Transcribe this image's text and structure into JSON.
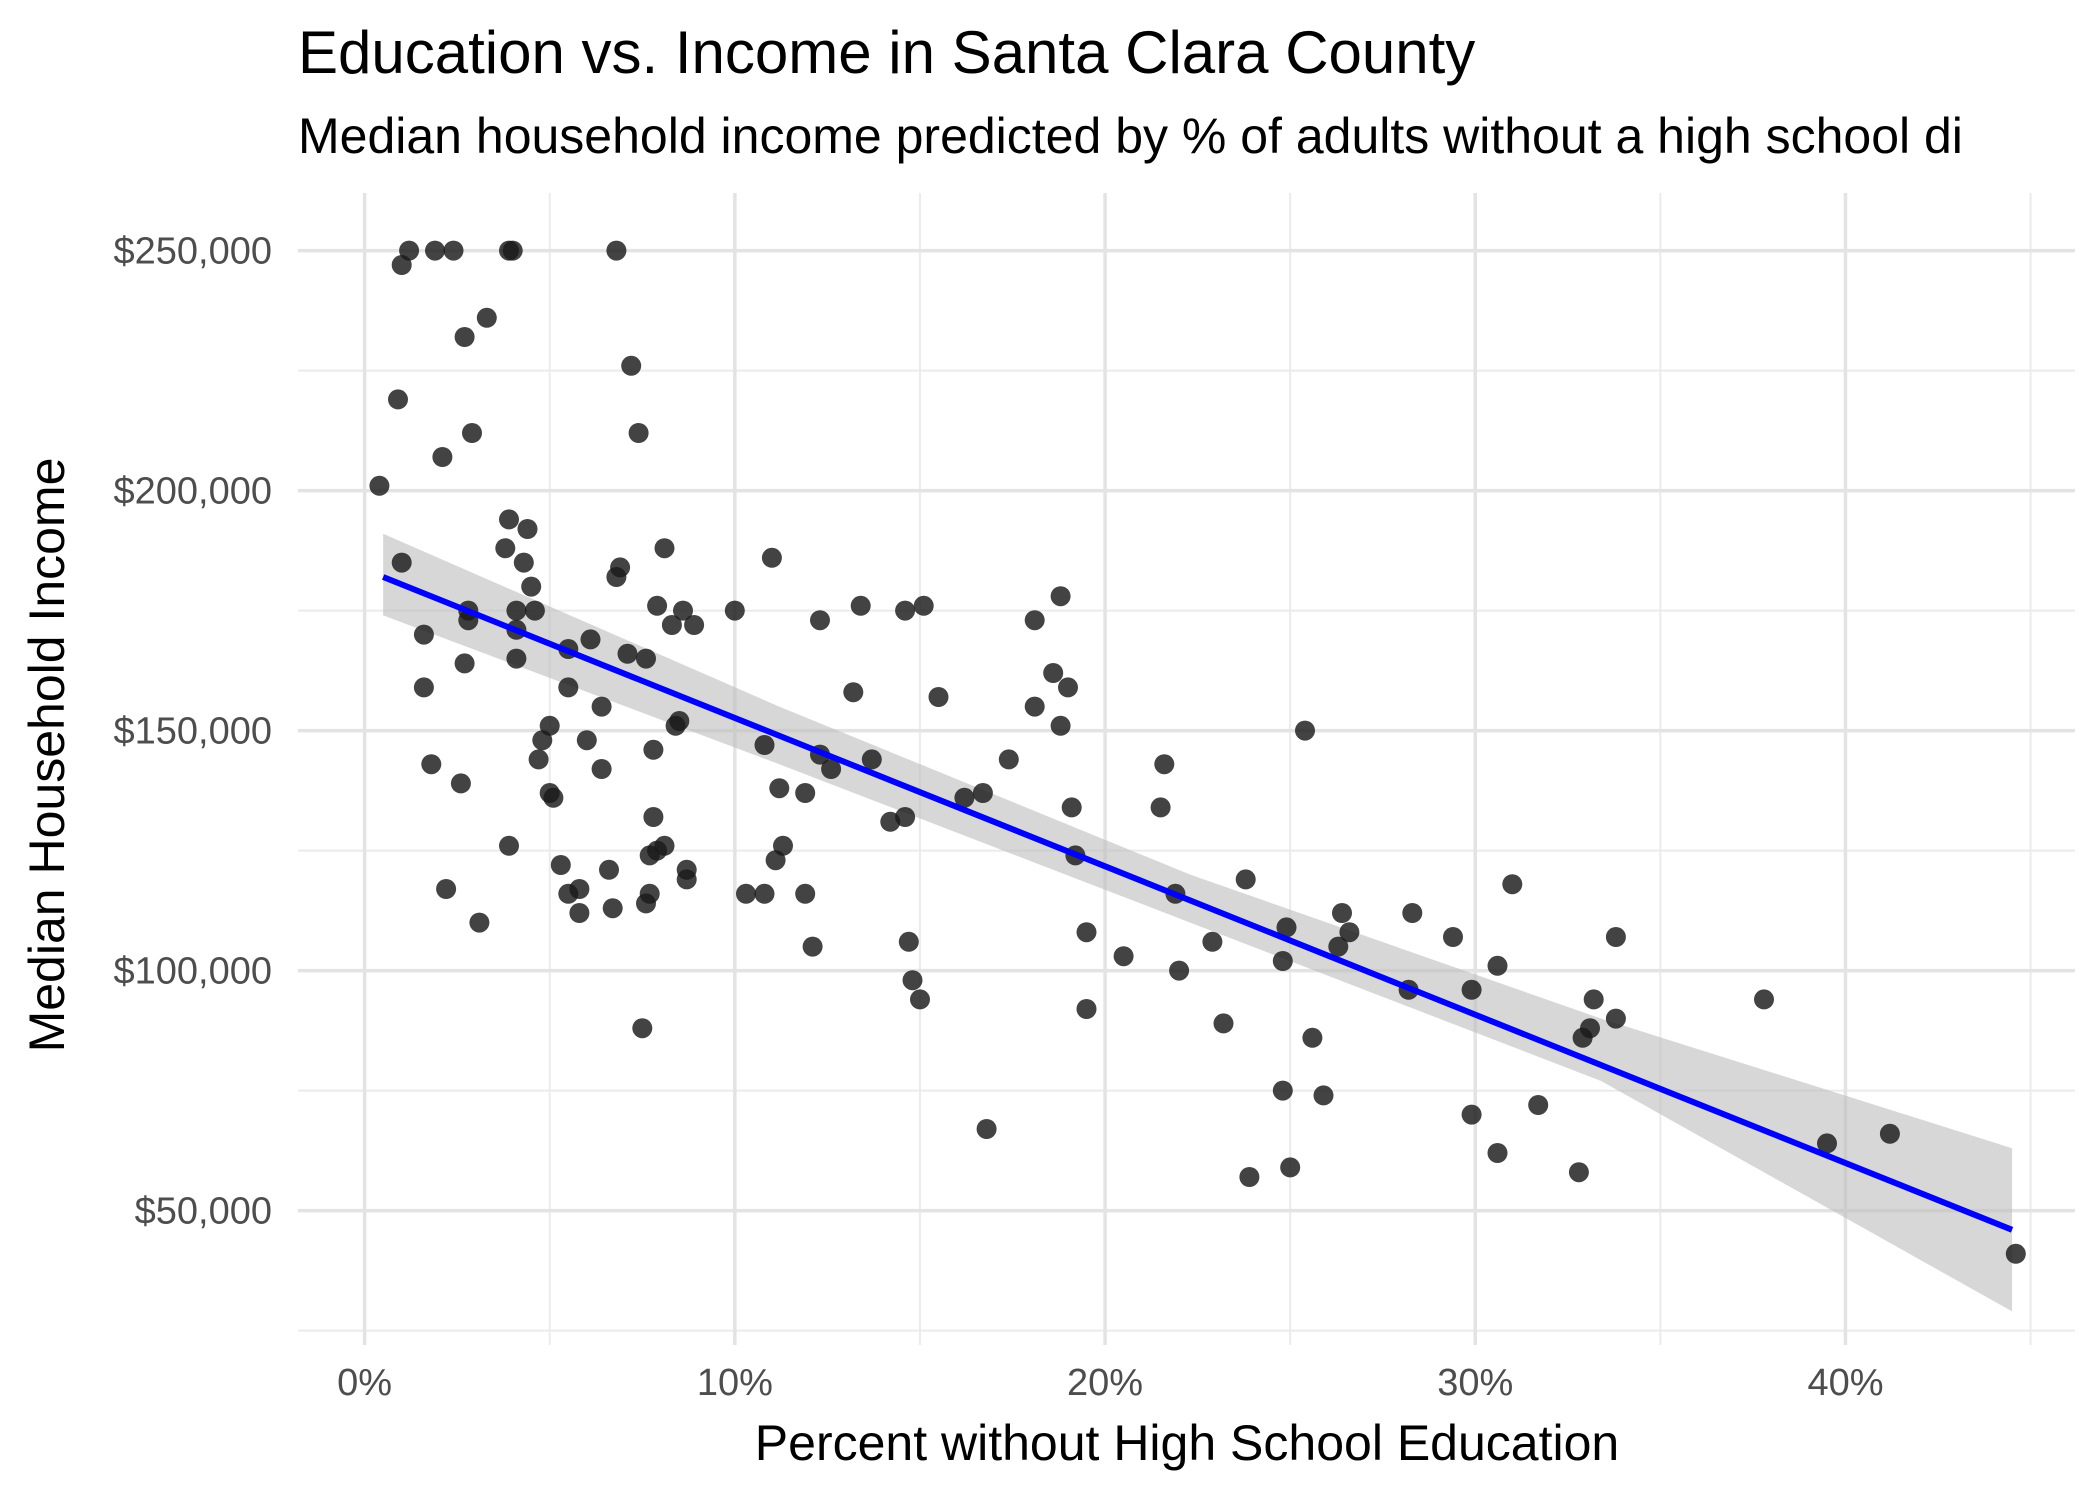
{
  "chart_data": {
    "type": "scatter",
    "title": "Education vs. Income in Santa Clara County",
    "subtitle": "Median household income predicted by % of adults without a high school di",
    "xlabel": "Percent without High School Education",
    "ylabel": "Median Household Income",
    "xlim": [
      -1.8,
      46.2
    ],
    "ylim": [
      22000,
      262000
    ],
    "x_ticks": [
      0,
      10,
      20,
      30,
      40
    ],
    "x_tick_labels": [
      "0%",
      "10%",
      "20%",
      "30%",
      "40%"
    ],
    "x_minor_ticks": [
      5,
      15,
      25,
      35,
      45
    ],
    "y_ticks": [
      50000,
      100000,
      150000,
      200000,
      250000
    ],
    "y_tick_labels": [
      "$50,000",
      "$100,000",
      "$150,000",
      "$200,000",
      "$250,000"
    ],
    "y_minor_ticks": [
      25000,
      75000,
      125000,
      175000,
      225000
    ],
    "grid": true,
    "point_color": "#1a1a1a",
    "trend_color": "#0000ff",
    "band_color": "#bebebe",
    "points": [
      [
        0.4,
        201000
      ],
      [
        1.0,
        247000
      ],
      [
        1.2,
        250000
      ],
      [
        1.9,
        250000
      ],
      [
        2.4,
        250000
      ],
      [
        3.9,
        250000
      ],
      [
        4.0,
        250000
      ],
      [
        6.8,
        250000
      ],
      [
        0.9,
        219000
      ],
      [
        2.7,
        232000
      ],
      [
        3.3,
        236000
      ],
      [
        7.2,
        226000
      ],
      [
        2.9,
        212000
      ],
      [
        7.4,
        212000
      ],
      [
        2.1,
        207000
      ],
      [
        3.9,
        194000
      ],
      [
        4.4,
        192000
      ],
      [
        3.8,
        188000
      ],
      [
        8.1,
        188000
      ],
      [
        1.0,
        185000
      ],
      [
        4.3,
        185000
      ],
      [
        6.9,
        184000
      ],
      [
        11.0,
        186000
      ],
      [
        6.8,
        182000
      ],
      [
        4.5,
        180000
      ],
      [
        18.8,
        178000
      ],
      [
        13.4,
        176000
      ],
      [
        15.1,
        176000
      ],
      [
        2.8,
        175000
      ],
      [
        4.1,
        175000
      ],
      [
        4.6,
        175000
      ],
      [
        7.9,
        176000
      ],
      [
        8.6,
        175000
      ],
      [
        10.0,
        175000
      ],
      [
        14.6,
        175000
      ],
      [
        2.8,
        173000
      ],
      [
        8.3,
        172000
      ],
      [
        8.9,
        172000
      ],
      [
        12.3,
        173000
      ],
      [
        18.1,
        173000
      ],
      [
        4.1,
        171000
      ],
      [
        1.6,
        170000
      ],
      [
        6.1,
        169000
      ],
      [
        5.5,
        167000
      ],
      [
        7.1,
        166000
      ],
      [
        7.6,
        165000
      ],
      [
        4.1,
        165000
      ],
      [
        2.7,
        164000
      ],
      [
        18.6,
        162000
      ],
      [
        1.6,
        159000
      ],
      [
        5.5,
        159000
      ],
      [
        13.2,
        158000
      ],
      [
        19.0,
        159000
      ],
      [
        15.5,
        157000
      ],
      [
        6.4,
        155000
      ],
      [
        18.1,
        155000
      ],
      [
        8.4,
        151000
      ],
      [
        8.5,
        152000
      ],
      [
        5.0,
        151000
      ],
      [
        18.8,
        151000
      ],
      [
        25.4,
        150000
      ],
      [
        4.8,
        148000
      ],
      [
        6.0,
        148000
      ],
      [
        10.8,
        147000
      ],
      [
        7.8,
        146000
      ],
      [
        4.7,
        144000
      ],
      [
        12.3,
        145000
      ],
      [
        13.7,
        144000
      ],
      [
        17.4,
        144000
      ],
      [
        1.8,
        143000
      ],
      [
        6.4,
        142000
      ],
      [
        12.6,
        142000
      ],
      [
        21.6,
        143000
      ],
      [
        2.6,
        139000
      ],
      [
        11.2,
        138000
      ],
      [
        5.0,
        137000
      ],
      [
        5.1,
        136000
      ],
      [
        11.9,
        137000
      ],
      [
        16.2,
        136000
      ],
      [
        16.7,
        137000
      ],
      [
        21.5,
        134000
      ],
      [
        19.1,
        134000
      ],
      [
        7.8,
        132000
      ],
      [
        14.2,
        131000
      ],
      [
        14.6,
        132000
      ],
      [
        3.9,
        126000
      ],
      [
        11.3,
        126000
      ],
      [
        8.1,
        126000
      ],
      [
        7.7,
        124000
      ],
      [
        7.9,
        125000
      ],
      [
        19.2,
        124000
      ],
      [
        11.1,
        123000
      ],
      [
        5.3,
        122000
      ],
      [
        6.6,
        121000
      ],
      [
        8.7,
        121000
      ],
      [
        8.7,
        119000
      ],
      [
        23.8,
        119000
      ],
      [
        31.0,
        118000
      ],
      [
        2.2,
        117000
      ],
      [
        5.5,
        116000
      ],
      [
        5.8,
        117000
      ],
      [
        10.3,
        116000
      ],
      [
        10.8,
        116000
      ],
      [
        11.9,
        116000
      ],
      [
        21.9,
        116000
      ],
      [
        7.6,
        114000
      ],
      [
        7.7,
        116000
      ],
      [
        5.8,
        112000
      ],
      [
        6.7,
        113000
      ],
      [
        26.4,
        112000
      ],
      [
        28.3,
        112000
      ],
      [
        3.1,
        110000
      ],
      [
        24.9,
        109000
      ],
      [
        26.6,
        108000
      ],
      [
        19.5,
        108000
      ],
      [
        29.4,
        107000
      ],
      [
        33.8,
        107000
      ],
      [
        14.7,
        106000
      ],
      [
        22.9,
        106000
      ],
      [
        26.3,
        105000
      ],
      [
        12.1,
        105000
      ],
      [
        20.5,
        103000
      ],
      [
        24.8,
        102000
      ],
      [
        30.6,
        101000
      ],
      [
        22.0,
        100000
      ],
      [
        14.8,
        98000
      ],
      [
        28.2,
        96000
      ],
      [
        29.9,
        96000
      ],
      [
        15.0,
        94000
      ],
      [
        33.2,
        94000
      ],
      [
        37.8,
        94000
      ],
      [
        19.5,
        92000
      ],
      [
        33.8,
        90000
      ],
      [
        23.2,
        89000
      ],
      [
        33.1,
        88000
      ],
      [
        7.5,
        88000
      ],
      [
        32.9,
        86000
      ],
      [
        25.6,
        86000
      ],
      [
        24.8,
        75000
      ],
      [
        25.9,
        74000
      ],
      [
        31.7,
        72000
      ],
      [
        29.9,
        70000
      ],
      [
        16.8,
        67000
      ],
      [
        41.2,
        66000
      ],
      [
        39.5,
        64000
      ],
      [
        30.6,
        62000
      ],
      [
        25.0,
        59000
      ],
      [
        23.9,
        57000
      ],
      [
        32.8,
        58000
      ],
      [
        44.6,
        41000
      ]
    ],
    "trend": {
      "x": [
        0.5,
        44.5
      ],
      "y": [
        182000,
        46000
      ]
    },
    "band": {
      "x": [
        0.5,
        11.2,
        22.3,
        33.4,
        44.5
      ],
      "lower": [
        174000,
        143000,
        110000,
        77000,
        29000
      ],
      "upper": [
        191000,
        155000,
        120000,
        90000,
        63000
      ]
    }
  }
}
